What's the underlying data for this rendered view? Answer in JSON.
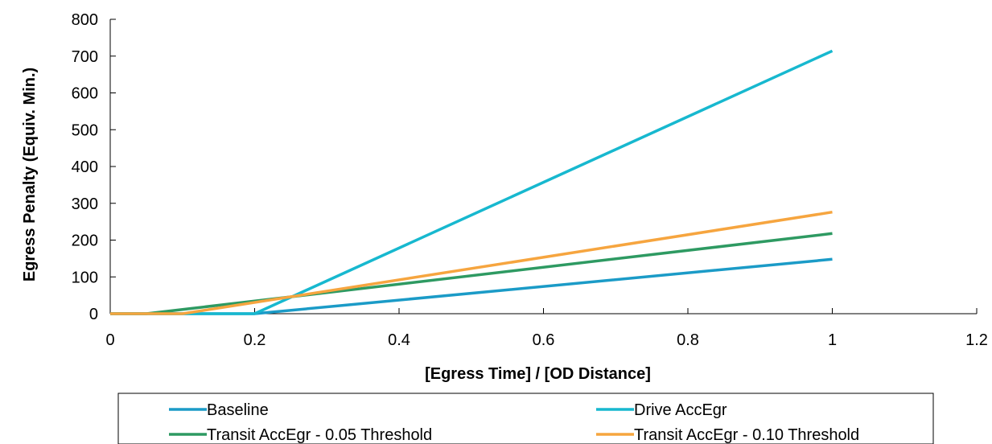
{
  "chart_data": {
    "type": "line",
    "title": "",
    "xlabel": "[Egress Time] / [OD Distance]",
    "ylabel": "Egress Penalty (Equiv. Min.)",
    "xlim": [
      0,
      1.2
    ],
    "ylim": [
      0,
      800
    ],
    "xticks": [
      0,
      0.2,
      0.4,
      0.6,
      0.8,
      1,
      1.2
    ],
    "yticks": [
      0,
      100,
      200,
      300,
      400,
      500,
      600,
      700,
      800
    ],
    "xtick_labels": [
      "0",
      "0.2",
      "0.4",
      "0.6",
      "0.8",
      "1",
      "1.2"
    ],
    "ytick_labels": [
      "0",
      "100",
      "200",
      "300",
      "400",
      "500",
      "600",
      "700",
      "800"
    ],
    "grid": false,
    "legend_position": "bottom",
    "series": [
      {
        "name": "Baseline",
        "color": "#1b9bc7",
        "x": [
          0,
          0.2,
          1
        ],
        "y": [
          0,
          0,
          148
        ]
      },
      {
        "name": "Drive AccEgr",
        "color": "#17b8cf",
        "x": [
          0,
          0.2,
          1
        ],
        "y": [
          0,
          0,
          714
        ]
      },
      {
        "name": "Transit AccEgr - 0.05 Threshold",
        "color": "#2e9a62",
        "x": [
          0,
          0.05,
          1
        ],
        "y": [
          0,
          0,
          218
        ]
      },
      {
        "name": "Transit AccEgr - 0.10 Threshold",
        "color": "#f6a53f",
        "x": [
          0,
          0.1,
          1
        ],
        "y": [
          0,
          0,
          276
        ]
      }
    ]
  }
}
